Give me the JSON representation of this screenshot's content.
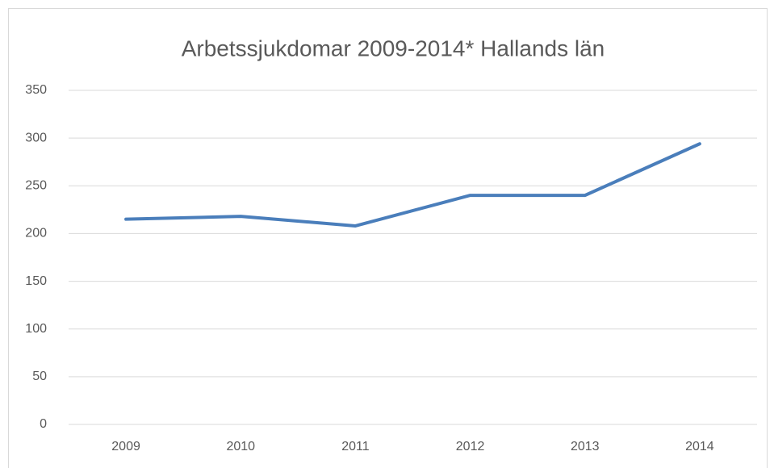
{
  "chart_data": {
    "type": "line",
    "title": "Arbetssjukdomar 2009-2014* Hallands län",
    "categories": [
      "2009",
      "2010",
      "2011",
      "2012",
      "2013",
      "2014"
    ],
    "series": [
      {
        "name": "Arbetssjukdomar",
        "color": "#4a7ebb",
        "values": [
          215,
          218,
          208,
          240,
          240,
          294
        ]
      }
    ],
    "ylim": [
      0,
      350
    ],
    "yticks": [
      0,
      50,
      100,
      150,
      200,
      250,
      300,
      350
    ],
    "grid": true
  }
}
